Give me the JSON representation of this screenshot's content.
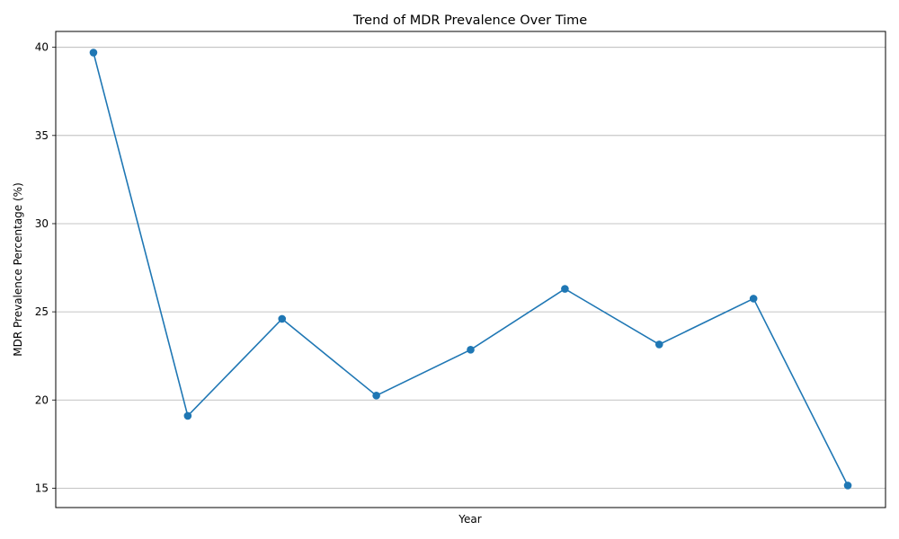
{
  "chart_data": {
    "type": "line",
    "title": "Trend of MDR Prevalence Over Time",
    "xlabel": "Year",
    "ylabel": "MDR Prevalence Percentage (%)",
    "x": [
      1,
      2,
      3,
      4,
      5,
      6,
      7,
      8,
      9
    ],
    "x_tick_labels_shown": false,
    "series": [
      {
        "values": [
          39.7,
          19.1,
          24.6,
          20.25,
          22.85,
          26.3,
          23.15,
          25.75,
          15.15
        ],
        "color": "#1f77b4",
        "marker": "circle"
      }
    ],
    "xlim": [
      0.6,
      9.4
    ],
    "ylim": [
      13.9,
      40.9
    ],
    "y_ticks": [
      15,
      20,
      25,
      30,
      35,
      40
    ],
    "grid": "horizontal"
  }
}
